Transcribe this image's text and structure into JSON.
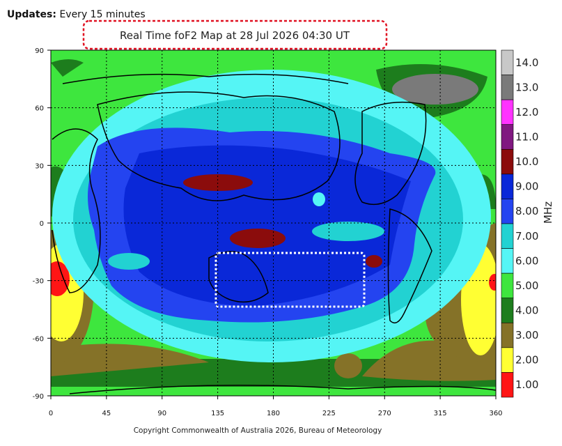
{
  "header": {
    "label": "Updates:",
    "value": "Every 15 minutes"
  },
  "map": {
    "title": "Real Time foF2 Map at 28 Jul 2026 04:30 UT",
    "xticks": [
      0,
      45,
      90,
      135,
      180,
      225,
      270,
      315,
      360
    ],
    "yticks": [
      90,
      60,
      30,
      0,
      -30,
      -60,
      -90
    ],
    "colorbar": {
      "unit": "MHz",
      "levels": [
        {
          "label": "14.0",
          "color": "#c8c8c8"
        },
        {
          "label": "13.0",
          "color": "#7a7a7a"
        },
        {
          "label": "12.0",
          "color": "#ff33ff"
        },
        {
          "label": "11.0",
          "color": "#801880"
        },
        {
          "label": "10.0",
          "color": "#8b0c0c"
        },
        {
          "label": "9.00",
          "color": "#0a28d8"
        },
        {
          "label": "8.00",
          "color": "#2444f0"
        },
        {
          "label": "7.00",
          "color": "#22d2d2"
        },
        {
          "label": "6.00",
          "color": "#55f5f5"
        },
        {
          "label": "5.00",
          "color": "#3ee63e"
        },
        {
          "label": "4.00",
          "color": "#1d7d1d"
        },
        {
          "label": "3.00",
          "color": "#857228"
        },
        {
          "label": "2.00",
          "color": "#ffff33"
        },
        {
          "label": "1.00",
          "color": "#ff1515"
        }
      ]
    }
  },
  "footer": "Copyright Commonwealth of Australia 2026, Bureau of Meteorology"
}
